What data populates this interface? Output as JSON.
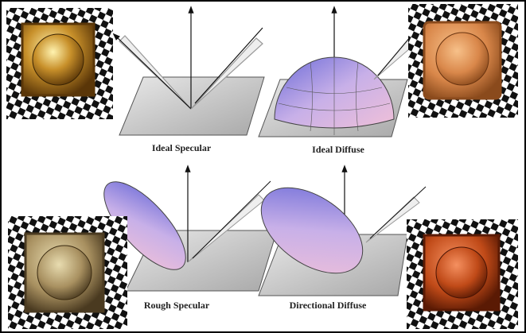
{
  "labels": [
    "Ideal Specular",
    "Ideal Diffuse",
    "Rough Specular",
    "Directional Diffuse"
  ]
}
